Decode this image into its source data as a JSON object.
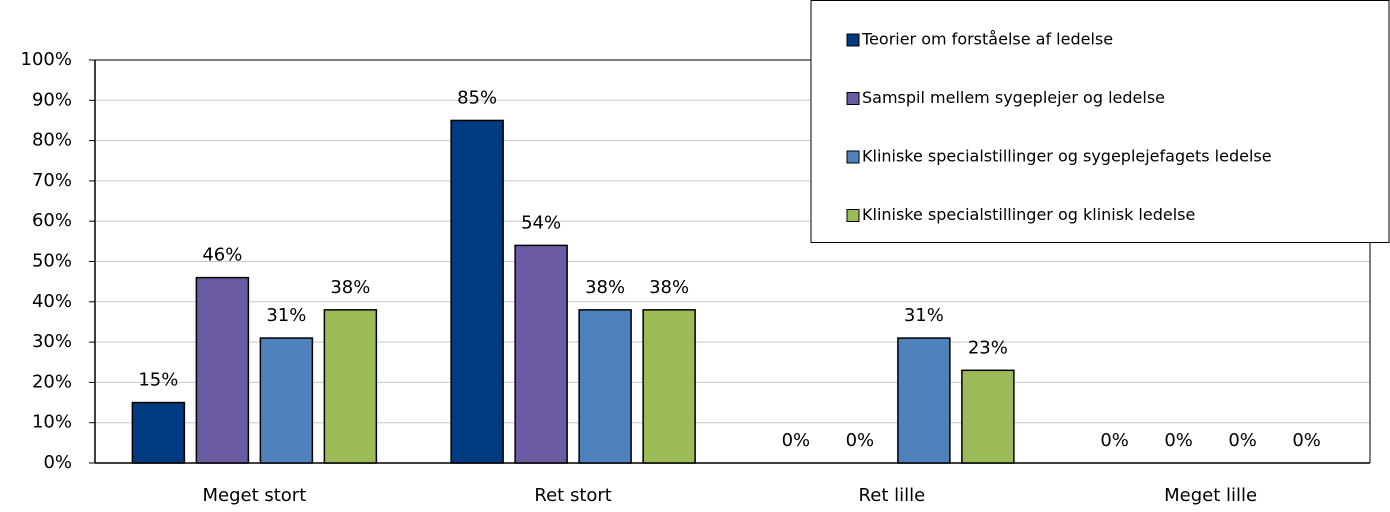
{
  "chart_data": {
    "type": "bar",
    "categories": [
      "Meget stort",
      "Ret stort",
      "Ret lille",
      "Meget lille"
    ],
    "series": [
      {
        "name": "Teorier om forståelse af ledelse",
        "color": "#003a80",
        "values": [
          15,
          85,
          0,
          0
        ],
        "value_labels": [
          "15%",
          "85%",
          "0%",
          "0%"
        ]
      },
      {
        "name": "Samspil mellem sygeplejer og ledelse",
        "color": "#6a5ba3",
        "values": [
          46,
          54,
          0,
          0
        ],
        "value_labels": [
          "46%",
          "54%",
          "0%",
          "0%"
        ]
      },
      {
        "name": "Kliniske specialstillinger og sygeplejefagets ledelse",
        "color": "#4f81bd",
        "values": [
          31,
          38,
          31,
          0
        ],
        "value_labels": [
          "31%",
          "38%",
          "31%",
          "0%"
        ]
      },
      {
        "name": "Kliniske specialstillinger og klinisk ledelse",
        "color": "#9bbb59",
        "values": [
          38,
          38,
          23,
          0
        ],
        "value_labels": [
          "38%",
          "38%",
          "23%",
          "0%"
        ]
      }
    ],
    "ylim": [
      0,
      100
    ],
    "yticks": [
      {
        "value": 0,
        "label": "0%"
      },
      {
        "value": 10,
        "label": "10%"
      },
      {
        "value": 20,
        "label": "20%"
      },
      {
        "value": 30,
        "label": "30%"
      },
      {
        "value": 40,
        "label": "40%"
      },
      {
        "value": 50,
        "label": "50%"
      },
      {
        "value": 60,
        "label": "60%"
      },
      {
        "value": 70,
        "label": "70%"
      },
      {
        "value": 80,
        "label": "80%"
      },
      {
        "value": 90,
        "label": "90%"
      },
      {
        "value": 100,
        "label": "100%"
      }
    ],
    "grid": true,
    "legend": "upper right"
  }
}
